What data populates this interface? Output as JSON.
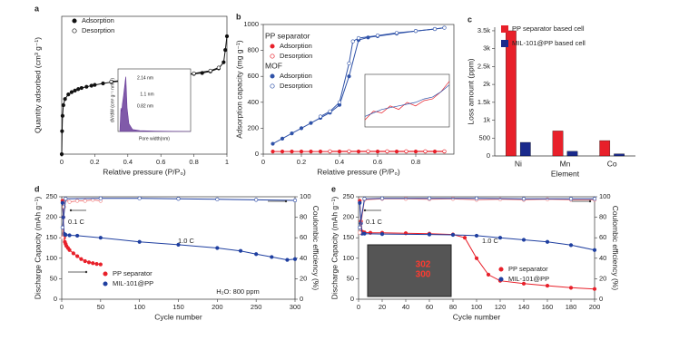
{
  "chart_data": [
    {
      "panel": "a",
      "type": "line",
      "xlabel": "Relative pressure (P/P₀)",
      "ylabel": "Quantity adsorbed (cm³ g⁻¹)",
      "xlim": [
        0,
        1
      ],
      "xticks": [
        0,
        0.2,
        0.4,
        0.6,
        0.8,
        1
      ],
      "ylim": [
        0,
        900
      ],
      "series": [
        {
          "name": "Adsorption",
          "color": "#111111",
          "marker": "filled",
          "x": [
            0,
            0.002,
            0.005,
            0.01,
            0.02,
            0.04,
            0.06,
            0.08,
            0.1,
            0.12,
            0.15,
            0.18,
            0.2,
            0.25,
            0.3,
            0.35,
            0.4,
            0.45,
            0.5,
            0.55,
            0.6,
            0.65,
            0.7,
            0.75,
            0.8,
            0.85,
            0.9,
            0.95,
            0.98,
            0.99,
            1.0
          ],
          "values": [
            0,
            150,
            250,
            320,
            360,
            390,
            405,
            415,
            425,
            432,
            440,
            447,
            452,
            462,
            470,
            476,
            482,
            487,
            492,
            497,
            502,
            507,
            512,
            518,
            524,
            530,
            540,
            560,
            600,
            680,
            770
          ]
        },
        {
          "name": "Desorption",
          "color": "#111111",
          "marker": "open",
          "x": [
            0.3,
            0.4,
            0.5,
            0.6,
            0.7,
            0.8,
            0.9,
            0.95
          ],
          "values": [
            474,
            485,
            495,
            505,
            515,
            527,
            545,
            565
          ]
        }
      ],
      "inset": {
        "type": "area",
        "xlabel": "Pore width(nm)",
        "ylabel": "dV/dW (cm³ g⁻¹ nm⁻¹)",
        "xlim": [
          0,
          20
        ],
        "ylim": [
          0,
          1.6
        ],
        "series": [
          {
            "color": "#6a3d9a",
            "x": [
              0.5,
              0.8,
              1.0,
              1.2,
              1.5,
              2.0,
              2.14,
              2.5,
              3,
              4,
              6,
              10,
              20
            ],
            "values": [
              0,
              0.6,
              0.5,
              0.7,
              0.9,
              1.3,
              1.4,
              0.6,
              0.2,
              0.05,
              0.02,
              0.01,
              0
            ]
          }
        ],
        "annotations": [
          "2.14 nm",
          "1.1 nm",
          "0.82 nm"
        ]
      }
    },
    {
      "panel": "b",
      "type": "line",
      "xlabel": "Relative pressure (P/P₀)",
      "ylabel": "Adsorption capacity (mg g⁻¹)",
      "xlim": [
        0,
        1
      ],
      "xticks": [
        0,
        0.2,
        0.4,
        0.6,
        0.8
      ],
      "ylim": [
        0,
        1000
      ],
      "yticks": [
        0,
        200,
        400,
        600,
        800,
        1000
      ],
      "legend_groups": [
        "PP separator",
        "MOF"
      ],
      "series": [
        {
          "name": "Adsorption",
          "color": "#e8202a",
          "marker": "filled",
          "x": [
            0.05,
            0.1,
            0.15,
            0.2,
            0.25,
            0.3,
            0.35,
            0.4,
            0.45,
            0.5,
            0.55,
            0.6,
            0.65,
            0.7,
            0.75,
            0.8,
            0.85,
            0.9,
            0.95
          ],
          "values": [
            20,
            20,
            20,
            20,
            20,
            20,
            20,
            20,
            20,
            20,
            20,
            20,
            20,
            20,
            20,
            20,
            20,
            20,
            20
          ]
        },
        {
          "name": "Desorption",
          "color": "#e8202a",
          "marker": "open",
          "x": [
            0.95,
            0.85,
            0.75,
            0.65,
            0.55,
            0.45,
            0.35
          ],
          "values": [
            22,
            22,
            22,
            22,
            22,
            22,
            22
          ]
        },
        {
          "name": "Adsorption",
          "color": "#2f52a8",
          "marker": "filled",
          "x": [
            0.05,
            0.1,
            0.15,
            0.2,
            0.25,
            0.3,
            0.35,
            0.4,
            0.45,
            0.5,
            0.55,
            0.6,
            0.7,
            0.8,
            0.9,
            0.95
          ],
          "values": [
            80,
            120,
            160,
            200,
            240,
            280,
            320,
            380,
            600,
            880,
            900,
            910,
            930,
            950,
            965,
            975
          ]
        },
        {
          "name": "Desorption",
          "color": "#2f52a8",
          "marker": "open",
          "x": [
            0.95,
            0.9,
            0.8,
            0.7,
            0.6,
            0.5,
            0.47,
            0.45,
            0.4,
            0.35,
            0.3
          ],
          "values": [
            975,
            965,
            950,
            935,
            915,
            895,
            870,
            700,
            400,
            330,
            290
          ]
        }
      ],
      "inset": {
        "type": "line",
        "xlim": [
          0,
          1
        ],
        "ylim": [
          0,
          1.5
        ],
        "series": [
          {
            "color": "#e8202a",
            "x": [
              0,
              0.1,
              0.2,
              0.3,
              0.4,
              0.5,
              0.6,
              0.7,
              0.8,
              0.9,
              1
            ],
            "values": [
              0.2,
              0.45,
              0.4,
              0.6,
              0.5,
              0.7,
              0.6,
              0.75,
              0.8,
              1.0,
              1.3
            ]
          },
          {
            "color": "#2f52a8",
            "x": [
              0,
              0.1,
              0.2,
              0.3,
              0.4,
              0.5,
              0.6,
              0.7,
              0.8,
              0.9,
              1
            ],
            "values": [
              0.3,
              0.4,
              0.5,
              0.55,
              0.6,
              0.65,
              0.7,
              0.8,
              0.85,
              1.0,
              1.2
            ]
          }
        ]
      }
    },
    {
      "panel": "c",
      "type": "bar",
      "xlabel": "Element",
      "ylabel": "Loss amount (ppm)",
      "categories": [
        "Ni",
        "Mn",
        "Co"
      ],
      "ylim": [
        0,
        3600
      ],
      "yticks": [
        0,
        500,
        {
          "value": 1000,
          "label": "1k"
        },
        {
          "value": 1500,
          "label": "1.5k"
        },
        {
          "value": 2000,
          "label": "2k"
        },
        {
          "value": 2500,
          "label": "2.5k"
        },
        {
          "value": 3000,
          "label": "3k"
        },
        {
          "value": 3500,
          "label": "3.5k"
        }
      ],
      "series": [
        {
          "name": "PP separator based cell",
          "color": "#e8202a",
          "values": [
            3500,
            700,
            430
          ]
        },
        {
          "name": "MIL-101@PP based cell",
          "color": "#1a2a8c",
          "values": [
            380,
            130,
            60
          ]
        }
      ]
    },
    {
      "panel": "d",
      "type": "line",
      "xlabel": "Cycle number",
      "ylabel": "Discharge Capacity (mAh g⁻¹)",
      "y2label": "Coulombic efficiency (%)",
      "xlim": [
        0,
        300
      ],
      "xticks": [
        0,
        50,
        100,
        150,
        200,
        250,
        300
      ],
      "ylim": [
        0,
        250
      ],
      "yticks": [
        0,
        50,
        100,
        150,
        200,
        250
      ],
      "y2lim": [
        0,
        100
      ],
      "y2ticks": [
        0,
        20,
        40,
        60,
        80,
        100
      ],
      "annotations": [
        "0.1 C",
        "1.0 C",
        "H₂O: 800 ppm"
      ],
      "series": [
        {
          "name": "PP separator",
          "color": "#e8202a",
          "marker": "filled",
          "x": [
            1,
            2,
            3,
            4,
            5,
            6,
            8,
            10,
            15,
            20,
            25,
            30,
            35,
            40,
            45,
            50
          ],
          "values": [
            240,
            200,
            150,
            140,
            135,
            130,
            125,
            120,
            112,
            105,
            98,
            93,
            90,
            88,
            86,
            85
          ]
        },
        {
          "name": "MIL-101@PP",
          "color": "#1f3fa0",
          "marker": "filled",
          "x": [
            1,
            2,
            3,
            4,
            5,
            10,
            20,
            50,
            100,
            150,
            200,
            230,
            250,
            270,
            290,
            300
          ],
          "values": [
            235,
            200,
            160,
            158,
            157,
            156,
            155,
            150,
            140,
            133,
            125,
            118,
            110,
            103,
            96,
            98
          ]
        },
        {
          "color": "#f08080",
          "marker": "open",
          "axis": "y2",
          "x": [
            1,
            3,
            5,
            10,
            20,
            30,
            40,
            50
          ],
          "values": [
            60,
            90,
            97,
            95,
            96,
            96,
            97,
            96
          ]
        },
        {
          "color": "#1f3fa0",
          "marker": "open",
          "axis": "y2",
          "x": [
            1,
            5,
            50,
            100,
            150,
            200,
            250,
            300
          ],
          "values": [
            70,
            98,
            98.5,
            98.5,
            98,
            97.5,
            97,
            96.5
          ]
        }
      ]
    },
    {
      "panel": "e",
      "type": "line",
      "xlabel": "Cycle number",
      "ylabel": "Discharge Capacity (mAh g⁻¹)",
      "y2label": "Coulombic efficiency (%)",
      "xlim": [
        0,
        200
      ],
      "xticks": [
        0,
        20,
        40,
        60,
        80,
        100,
        120,
        140,
        160,
        180,
        200
      ],
      "ylim": [
        0,
        250
      ],
      "yticks": [
        0,
        50,
        100,
        150,
        200,
        250
      ],
      "y2lim": [
        0,
        100
      ],
      "y2ticks": [
        0,
        20,
        40,
        60,
        80,
        100
      ],
      "annotations": [
        "0.1 C",
        "1.0 C",
        "302",
        "300"
      ],
      "series": [
        {
          "name": "PP separator",
          "color": "#e8202a",
          "marker": "filled",
          "x": [
            1,
            2,
            3,
            5,
            10,
            20,
            40,
            60,
            80,
            90,
            100,
            110,
            120,
            140,
            160,
            180,
            200
          ],
          "values": [
            240,
            190,
            165,
            163,
            162,
            162,
            161,
            160,
            158,
            150,
            100,
            60,
            45,
            38,
            33,
            28,
            25
          ]
        },
        {
          "name": "MIL-101@PP",
          "color": "#1f3fa0",
          "marker": "filled",
          "x": [
            1,
            2,
            3,
            5,
            20,
            60,
            80,
            100,
            120,
            140,
            160,
            180,
            200
          ],
          "values": [
            235,
            185,
            160,
            160,
            159,
            158,
            157,
            155,
            150,
            145,
            140,
            132,
            120
          ]
        },
        {
          "color": "#f08080",
          "marker": "open",
          "axis": "y2",
          "x": [
            1,
            5,
            20,
            40,
            60,
            80,
            100,
            120,
            140,
            160,
            180,
            200
          ],
          "values": [
            65,
            97,
            98,
            98,
            97.5,
            98,
            97,
            97.5,
            97,
            97.5,
            97,
            97
          ]
        },
        {
          "color": "#1f3fa0",
          "marker": "open",
          "axis": "y2",
          "x": [
            1,
            5,
            20,
            60,
            100,
            140,
            180,
            200
          ],
          "values": [
            70,
            98,
            98.5,
            98.5,
            98.5,
            98,
            98,
            98
          ]
        }
      ]
    }
  ]
}
